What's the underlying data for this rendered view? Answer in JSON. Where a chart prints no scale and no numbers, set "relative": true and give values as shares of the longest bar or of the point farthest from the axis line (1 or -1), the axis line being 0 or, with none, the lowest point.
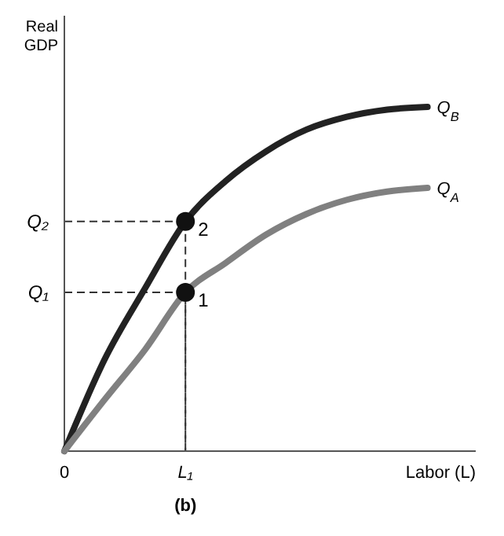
{
  "chart_data": {
    "type": "line",
    "relative": true,
    "xlabel": "Labor (L)",
    "ylabel": "Real GDP",
    "categories": [
      "0",
      null,
      null,
      "L₁",
      null,
      null,
      null,
      null,
      null,
      null
    ],
    "series": [
      {
        "name": "Q$_{B}$",
        "color": "#222222",
        "values": [
          0,
          0.267,
          0.473,
          0.667,
          0.785,
          0.871,
          0.934,
          0.971,
          0.992,
          1.0
        ]
      },
      {
        "name": "Q$_{A}$",
        "color": "#808080",
        "values": [
          0,
          0.15,
          0.295,
          0.461,
          0.547,
          0.629,
          0.689,
          0.73,
          0.754,
          0.765
        ]
      },
      {
        "type": "scatter",
        "color": "#111111",
        "marker": "circle",
        "x": [
          "L₁",
          "L₁"
        ],
        "values": [
          0.667,
          0.461
        ]
      }
    ],
    "annotations": [
      {
        "text": "2",
        "x": "L₁",
        "y": 0.667
      },
      {
        "text": "1",
        "x": "L₁",
        "y": 0.461
      },
      "Q₂",
      "Q₁",
      "(b)"
    ],
    "legend": false
  }
}
